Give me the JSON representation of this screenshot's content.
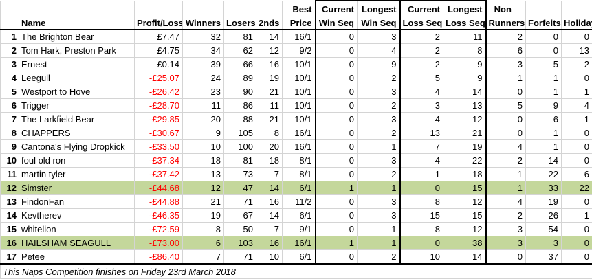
{
  "headers": {
    "row1": {
      "best": "Best",
      "current_win": "Current",
      "longest_win": "Longest",
      "current_loss": "Current",
      "longest_loss": "Longest",
      "non": "Non"
    },
    "row2": {
      "name": "Name",
      "profit_loss": "Profit/Loss",
      "winners": "Winners",
      "losers": "Losers",
      "seconds": "2nds",
      "price": "Price",
      "current_win": "Win Seq",
      "longest_win": "Win Seq",
      "current_loss": "Loss Seq",
      "longest_loss": "Loss Seq",
      "runners": "Runners",
      "forfeits": "Forfeits",
      "holiday": "Holiday"
    }
  },
  "rows": [
    {
      "rank": "1",
      "name": "The Brighton Bear",
      "pl": "£7.47",
      "winners": "32",
      "losers": "81",
      "seconds": "14",
      "price": "16/1",
      "cws": "0",
      "lws": "3",
      "cls": "2",
      "lls": "11",
      "nr": "2",
      "ff": "0",
      "hol": "0"
    },
    {
      "rank": "2",
      "name": "Tom Hark, Preston Park",
      "pl": "£4.75",
      "winners": "34",
      "losers": "62",
      "seconds": "12",
      "price": "9/2",
      "cws": "0",
      "lws": "4",
      "cls": "2",
      "lls": "8",
      "nr": "6",
      "ff": "0",
      "hol": "13"
    },
    {
      "rank": "3",
      "name": "Ernest",
      "pl": "£0.14",
      "winners": "39",
      "losers": "66",
      "seconds": "16",
      "price": "10/1",
      "cws": "0",
      "lws": "9",
      "cls": "2",
      "lls": "9",
      "nr": "3",
      "ff": "5",
      "hol": "2"
    },
    {
      "rank": "4",
      "name": "Leegull",
      "pl": "-£25.07",
      "winners": "24",
      "losers": "89",
      "seconds": "19",
      "price": "10/1",
      "cws": "0",
      "lws": "2",
      "cls": "5",
      "lls": "9",
      "nr": "1",
      "ff": "1",
      "hol": "0"
    },
    {
      "rank": "5",
      "name": "Westport to Hove",
      "pl": "-£26.42",
      "winners": "23",
      "losers": "90",
      "seconds": "21",
      "price": "10/1",
      "cws": "0",
      "lws": "3",
      "cls": "4",
      "lls": "14",
      "nr": "0",
      "ff": "1",
      "hol": "1"
    },
    {
      "rank": "6",
      "name": "Trigger",
      "pl": "-£28.70",
      "winners": "11",
      "losers": "86",
      "seconds": "11",
      "price": "10/1",
      "cws": "0",
      "lws": "2",
      "cls": "3",
      "lls": "13",
      "nr": "5",
      "ff": "9",
      "hol": "4"
    },
    {
      "rank": "7",
      "name": "The Larkfield Bear",
      "pl": "-£29.85",
      "winners": "20",
      "losers": "88",
      "seconds": "21",
      "price": "10/1",
      "cws": "0",
      "lws": "3",
      "cls": "4",
      "lls": "12",
      "nr": "0",
      "ff": "6",
      "hol": "1"
    },
    {
      "rank": "8",
      "name": "CHAPPERS",
      "pl": "-£30.67",
      "winners": "9",
      "losers": "105",
      "seconds": "8",
      "price": "16/1",
      "cws": "0",
      "lws": "2",
      "cls": "13",
      "lls": "21",
      "nr": "0",
      "ff": "1",
      "hol": "0"
    },
    {
      "rank": "9",
      "name": "Cantona's Flying Dropkick",
      "pl": "-£33.50",
      "winners": "10",
      "losers": "100",
      "seconds": "20",
      "price": "16/1",
      "cws": "0",
      "lws": "1",
      "cls": "7",
      "lls": "19",
      "nr": "4",
      "ff": "1",
      "hol": "0"
    },
    {
      "rank": "10",
      "name": "foul old ron",
      "pl": "-£37.34",
      "winners": "18",
      "losers": "81",
      "seconds": "18",
      "price": "8/1",
      "cws": "0",
      "lws": "3",
      "cls": "4",
      "lls": "22",
      "nr": "2",
      "ff": "14",
      "hol": "0"
    },
    {
      "rank": "11",
      "name": "martin tyler",
      "pl": "-£37.42",
      "winners": "13",
      "losers": "73",
      "seconds": "7",
      "price": "8/1",
      "cws": "0",
      "lws": "2",
      "cls": "1",
      "lls": "18",
      "nr": "1",
      "ff": "22",
      "hol": "6"
    },
    {
      "rank": "12",
      "name": "Simster",
      "pl": "-£44.68",
      "winners": "12",
      "losers": "47",
      "seconds": "14",
      "price": "6/1",
      "cws": "1",
      "lws": "1",
      "cls": "0",
      "lls": "15",
      "nr": "1",
      "ff": "33",
      "hol": "22"
    },
    {
      "rank": "13",
      "name": "FindonFan",
      "pl": "-£44.88",
      "winners": "21",
      "losers": "71",
      "seconds": "16",
      "price": "11/2",
      "cws": "0",
      "lws": "3",
      "cls": "8",
      "lls": "12",
      "nr": "4",
      "ff": "19",
      "hol": "0"
    },
    {
      "rank": "14",
      "name": "Kevtherev",
      "pl": "-£46.35",
      "winners": "19",
      "losers": "67",
      "seconds": "14",
      "price": "6/1",
      "cws": "0",
      "lws": "3",
      "cls": "15",
      "lls": "15",
      "nr": "2",
      "ff": "26",
      "hol": "1"
    },
    {
      "rank": "15",
      "name": "whitelion",
      "pl": "-£72.59",
      "winners": "8",
      "losers": "50",
      "seconds": "7",
      "price": "9/1",
      "cws": "0",
      "lws": "1",
      "cls": "8",
      "lls": "12",
      "nr": "3",
      "ff": "54",
      "hol": "0"
    },
    {
      "rank": "16",
      "name": "HAILSHAM SEAGULL",
      "pl": "-£73.00",
      "winners": "6",
      "losers": "103",
      "seconds": "16",
      "price": "16/1",
      "cws": "1",
      "lws": "1",
      "cls": "0",
      "lls": "38",
      "nr": "3",
      "ff": "3",
      "hol": "0"
    },
    {
      "rank": "17",
      "name": "Petee",
      "pl": "-£86.40",
      "winners": "7",
      "losers": "71",
      "seconds": "10",
      "price": "6/1",
      "cws": "0",
      "lws": "2",
      "cls": "10",
      "lls": "14",
      "nr": "0",
      "ff": "37",
      "hol": "0"
    }
  ],
  "highlight_color": "#c4d79b",
  "negative_color": "#ff0000",
  "footer": "This Naps Competition finishes on Friday 23rd March 2018"
}
